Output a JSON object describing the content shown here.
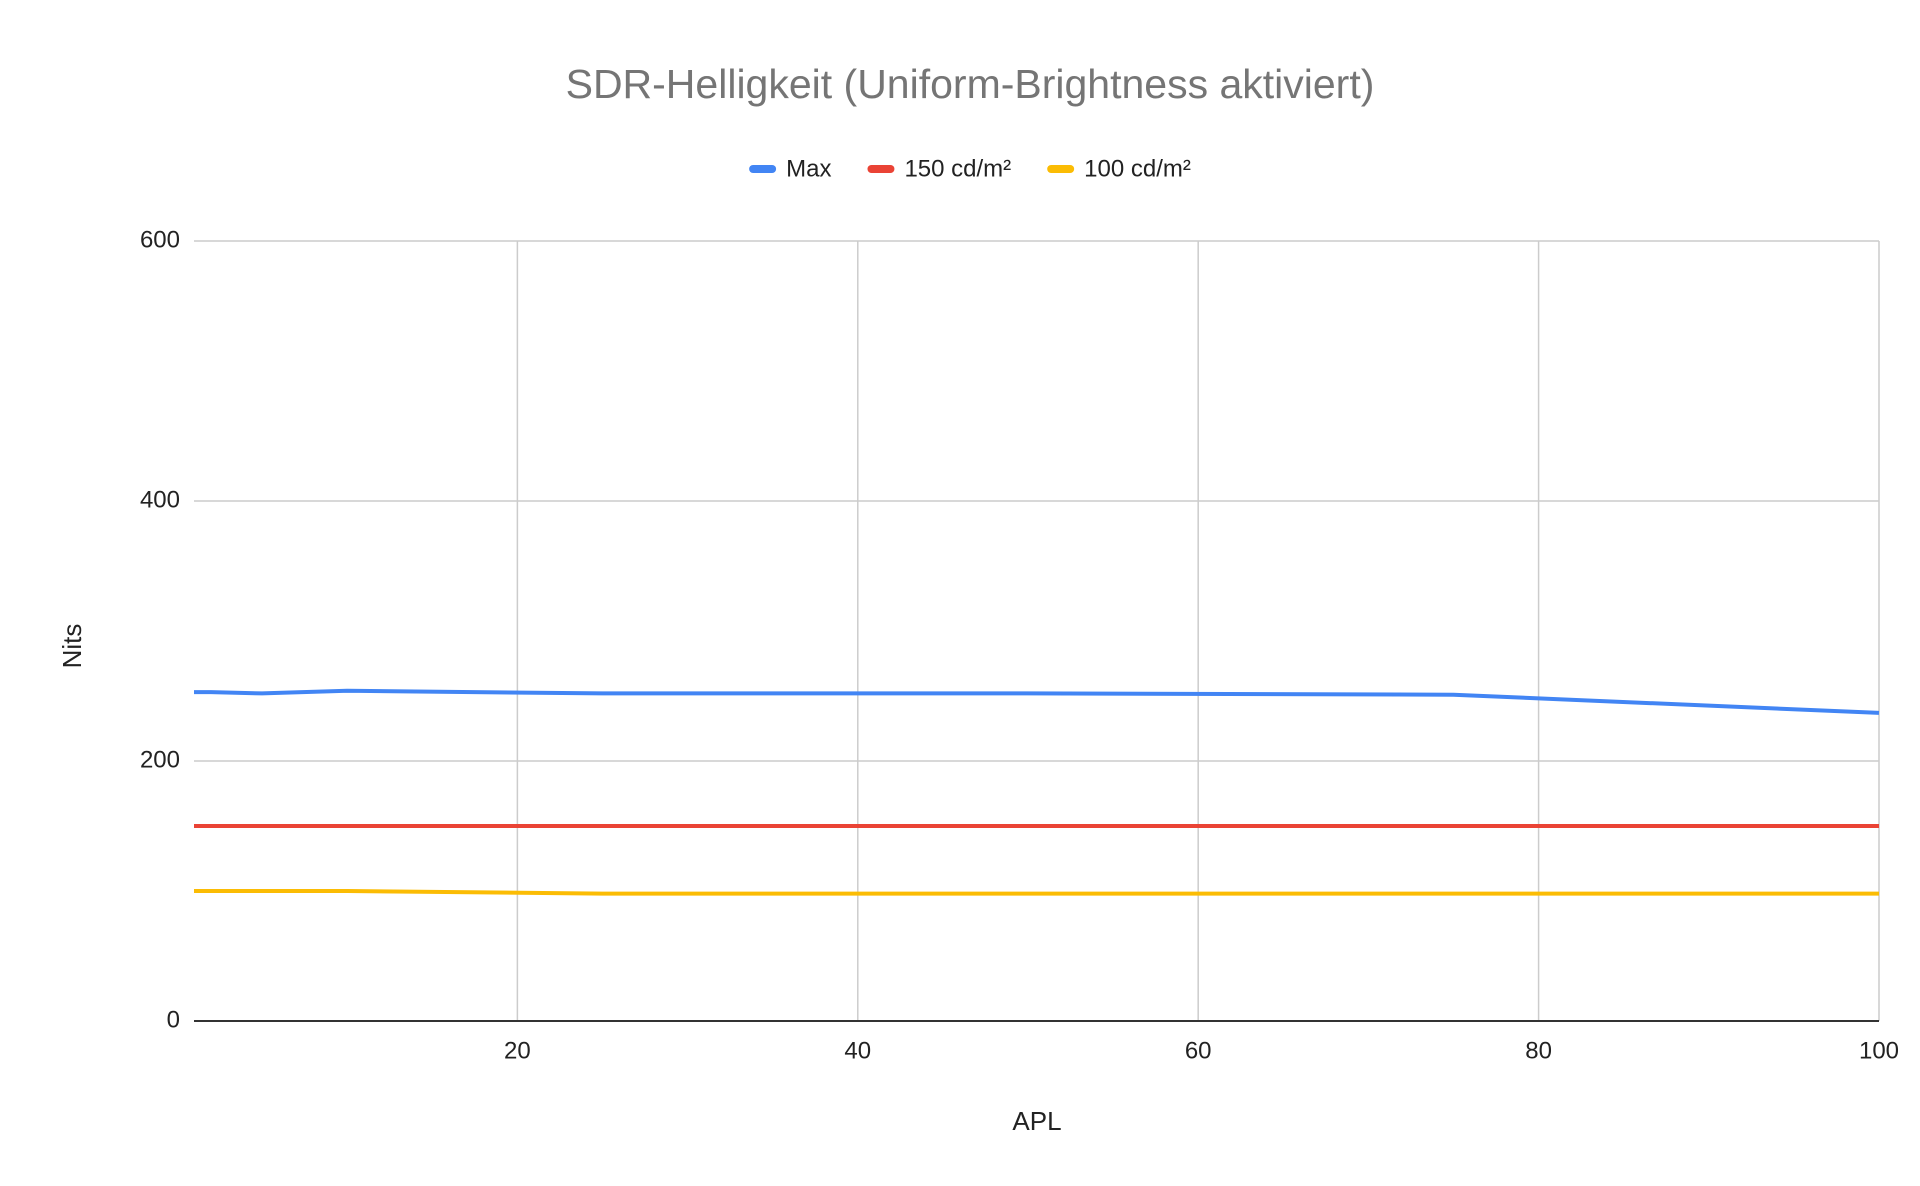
{
  "chart_data": {
    "type": "line",
    "title": "SDR-Helligkeit (Uniform-Brightness aktiviert)",
    "x_label": "APL",
    "y_label": "Nits",
    "x": [
      1,
      2,
      5,
      10,
      25,
      50,
      75,
      100
    ],
    "series": [
      {
        "name": "Max",
        "color": "#4285f4",
        "values": [
          253,
          253,
          252,
          254,
          252,
          252,
          251,
          237
        ]
      },
      {
        "name": "150 cd/m²",
        "color": "#ea4335",
        "values": [
          150,
          150,
          150,
          150,
          150,
          150,
          150,
          150
        ]
      },
      {
        "name": "100 cd/m²",
        "color": "#fbbc04",
        "values": [
          100,
          100,
          100,
          100,
          98,
          98,
          98,
          98
        ]
      }
    ],
    "xlim": [
      1,
      100
    ],
    "xticks": [
      20,
      40,
      60,
      80,
      100
    ],
    "ylim": [
      0,
      600
    ],
    "yticks": [
      0,
      200,
      400,
      600
    ],
    "grid": true,
    "legend": "top"
  }
}
